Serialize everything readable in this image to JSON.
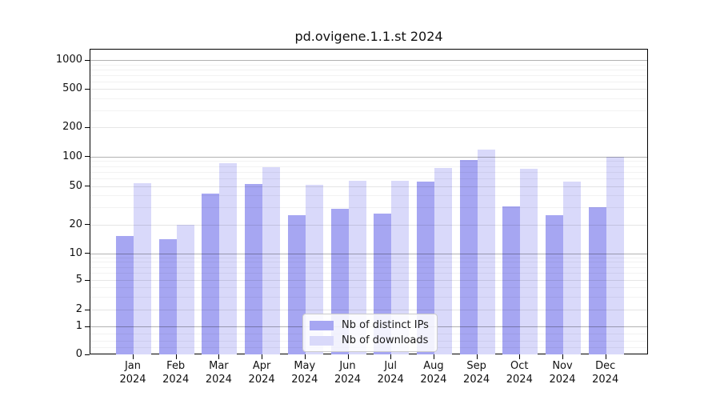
{
  "chart_data": {
    "type": "bar",
    "title": "pd.ovigene.1.1.st 2024",
    "categories": [
      "Jan 2024",
      "Feb 2024",
      "Mar 2024",
      "Apr 2024",
      "May 2024",
      "Jun 2024",
      "Jul 2024",
      "Aug 2024",
      "Sep 2024",
      "Oct 2024",
      "Nov 2024",
      "Dec 2024"
    ],
    "months": [
      "Jan",
      "Feb",
      "Mar",
      "Apr",
      "May",
      "Jun",
      "Jul",
      "Aug",
      "Sep",
      "Oct",
      "Nov",
      "Dec"
    ],
    "year": "2024",
    "series": [
      {
        "name": "Nb of distinct IPs",
        "color": "#a6a6f2",
        "values": [
          15,
          14,
          42,
          52,
          25,
          29,
          26,
          55,
          93,
          31,
          25,
          30
        ]
      },
      {
        "name": "Nb of downloads",
        "color": "#d9d9fa",
        "values": [
          53,
          20,
          86,
          78,
          51,
          56,
          56,
          76,
          117,
          75,
          55,
          100
        ]
      }
    ],
    "yscale": "symlog",
    "y_ticks": [
      0,
      1,
      2,
      5,
      10,
      20,
      50,
      100,
      200,
      500,
      1000
    ],
    "ylim": [
      0,
      1280
    ],
    "grid": true,
    "legend_position": "lower center"
  }
}
